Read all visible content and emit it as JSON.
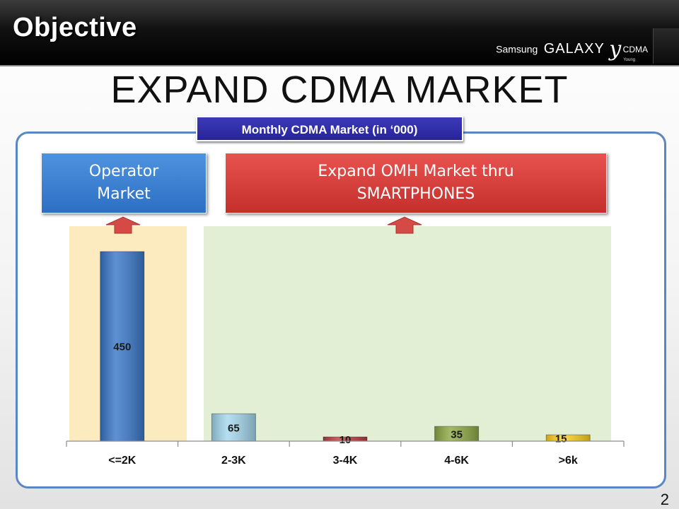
{
  "header": {
    "title": "Objective",
    "brand": {
      "maker": "Samsung",
      "product": "GALAXY",
      "model": "y",
      "suffix": "CDMA",
      "sub": "Young"
    }
  },
  "slide": {
    "title": "EXPAND CDMA MARKET",
    "panel_label": "Monthly CDMA Market (in ‘000)",
    "callouts": {
      "operator": [
        "Operator",
        "Market"
      ],
      "smartphones": [
        "Expand OMH Market thru",
        "SMARTPHONES"
      ]
    },
    "page_number": "2"
  },
  "colors": {
    "segment_operator_bg": "#fdebc0",
    "segment_smartphone_bg": "#e3efd4",
    "arrow": "#d64a45"
  },
  "chart_data": {
    "type": "bar",
    "categories": [
      "<=2K",
      "2-3K",
      "3-4K",
      "4-6K",
      ">6k"
    ],
    "values": [
      450,
      65,
      10,
      35,
      15
    ],
    "bar_colors": [
      "#3a78c8",
      "#a5d8ee",
      "#b84140",
      "#8fab46",
      "#ffd21c"
    ],
    "data_labels": [
      "450",
      "65",
      "10",
      "35",
      "15"
    ],
    "ylim": [
      0,
      480
    ],
    "title": "",
    "xlabel": "",
    "ylabel": "",
    "grid": false,
    "legend": "none"
  }
}
